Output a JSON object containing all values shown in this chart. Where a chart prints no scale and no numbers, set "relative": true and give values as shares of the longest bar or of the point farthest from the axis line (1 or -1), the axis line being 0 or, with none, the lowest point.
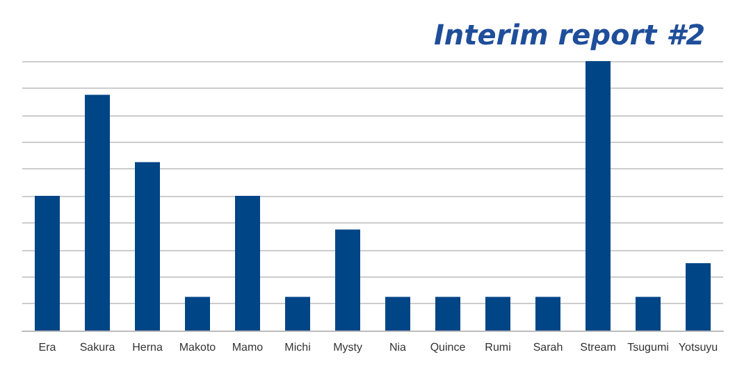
{
  "chart_data": {
    "type": "bar",
    "title": "Interim report #2",
    "relative": true,
    "grid": "y",
    "color": "#004586",
    "categories": [
      "Era",
      "Sakura",
      "Herna",
      "Makoto",
      "Mamo",
      "Michi",
      "Mysty",
      "Nia",
      "Quince",
      "Rumi",
      "Sarah",
      "Stream",
      "Tsugumi",
      "Yotsuyu"
    ],
    "values": [
      0.5,
      0.875,
      0.625,
      0.125,
      0.5,
      0.125,
      0.375,
      0.125,
      0.125,
      0.125,
      0.125,
      1,
      0.125,
      0.25
    ]
  }
}
